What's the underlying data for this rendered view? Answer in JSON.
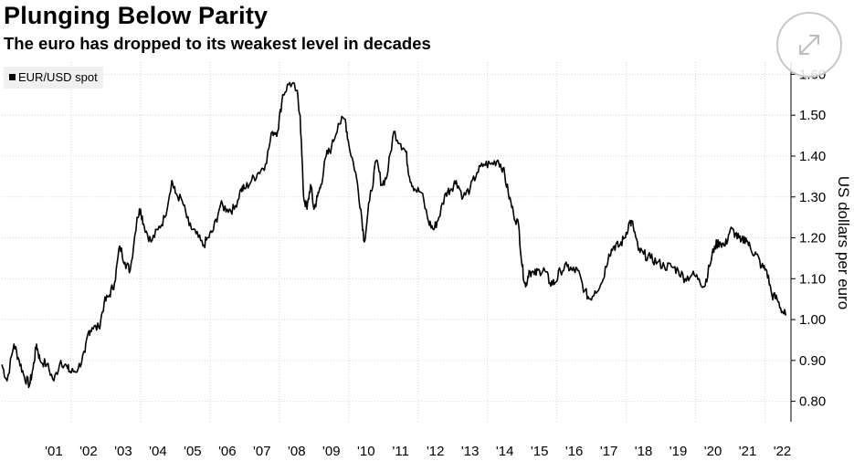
{
  "header": {
    "title": "Plunging Below Parity",
    "subtitle": "The euro has dropped to its weakest level in decades"
  },
  "legend": {
    "label": "EUR/USD spot"
  },
  "controls": {
    "expand_icon": "expand-arrows-icon"
  },
  "colors": {
    "line": "#000000",
    "grid": "#d6d6d6",
    "axis": "#000000",
    "legend_bg": "#f0f0f0"
  },
  "chart_data": {
    "type": "line",
    "title": "Plunging Below Parity",
    "subtitle": "The euro has dropped to its weakest level in decades",
    "ylabel": "US dollars per euro",
    "xlabel": "",
    "y_axis_side": "right",
    "ylim": [
      0.75,
      1.63
    ],
    "y_ticks": [
      0.8,
      0.9,
      1.0,
      1.1,
      1.2,
      1.3,
      1.4,
      1.5,
      1.6
    ],
    "y_tick_labels": [
      "0.80",
      "0.90",
      "1.00",
      "1.10",
      "1.20",
      "1.30",
      "1.40",
      "1.50",
      "1.60"
    ],
    "xlim": [
      2000.0,
      2022.75
    ],
    "x_ticks": [
      2001,
      2002,
      2003,
      2004,
      2005,
      2006,
      2007,
      2008,
      2009,
      2010,
      2011,
      2012,
      2013,
      2014,
      2015,
      2016,
      2017,
      2018,
      2019,
      2020,
      2021,
      2022
    ],
    "x_tick_labels": [
      "'01",
      "'02",
      "'03",
      "'04",
      "'05",
      "'06",
      "'07",
      "'08",
      "'09",
      "'10",
      "'11",
      "'12",
      "'13",
      "'14",
      "'15",
      "'16",
      "'17",
      "'18",
      "'19",
      "'20",
      "'21",
      "'22"
    ],
    "grid": true,
    "legend_position": "top-left",
    "series": [
      {
        "name": "EUR/USD spot",
        "x": [
          2000.0,
          2000.15,
          2000.35,
          2000.5,
          2000.65,
          2000.8,
          2000.9,
          2001.0,
          2001.1,
          2001.3,
          2001.5,
          2001.7,
          2001.9,
          2002.0,
          2002.2,
          2002.4,
          2002.5,
          2002.6,
          2002.8,
          2002.95,
          2003.1,
          2003.25,
          2003.4,
          2003.55,
          2003.7,
          2003.9,
          2004.0,
          2004.1,
          2004.3,
          2004.5,
          2004.7,
          2004.9,
          2005.0,
          2005.2,
          2005.4,
          2005.6,
          2005.8,
          2005.95,
          2006.1,
          2006.3,
          2006.5,
          2006.7,
          2006.9,
          2007.0,
          2007.2,
          2007.4,
          2007.6,
          2007.8,
          2007.95,
          2008.1,
          2008.3,
          2008.5,
          2008.6,
          2008.7,
          2008.8,
          2008.9,
          2009.0,
          2009.1,
          2009.2,
          2009.35,
          2009.5,
          2009.7,
          2009.9,
          2010.0,
          2010.2,
          2010.35,
          2010.45,
          2010.6,
          2010.8,
          2010.95,
          2011.1,
          2011.3,
          2011.5,
          2011.65,
          2011.75,
          2011.9,
          2012.1,
          2012.3,
          2012.45,
          2012.6,
          2012.8,
          2012.95,
          2013.1,
          2013.3,
          2013.5,
          2013.7,
          2013.9,
          2014.1,
          2014.3,
          2014.45,
          2014.6,
          2014.75,
          2014.9,
          2015.0,
          2015.1,
          2015.2,
          2015.35,
          2015.5,
          2015.65,
          2015.8,
          2015.95,
          2016.1,
          2016.3,
          2016.45,
          2016.6,
          2016.8,
          2016.95,
          2017.1,
          2017.3,
          2017.5,
          2017.65,
          2017.8,
          2017.95,
          2018.1,
          2018.2,
          2018.35,
          2018.5,
          2018.7,
          2018.9,
          2019.1,
          2019.3,
          2019.5,
          2019.7,
          2019.9,
          2020.1,
          2020.25,
          2020.4,
          2020.55,
          2020.7,
          2020.85,
          2021.0,
          2021.15,
          2021.3,
          2021.45,
          2021.6,
          2021.75,
          2021.9,
          2022.05,
          2022.2,
          2022.35,
          2022.5,
          2022.6
        ],
        "y": [
          0.89,
          0.85,
          0.94,
          0.9,
          0.86,
          0.84,
          0.88,
          0.94,
          0.9,
          0.89,
          0.85,
          0.9,
          0.88,
          0.87,
          0.88,
          0.92,
          0.97,
          0.98,
          0.98,
          1.04,
          1.06,
          1.09,
          1.18,
          1.14,
          1.12,
          1.25,
          1.27,
          1.23,
          1.19,
          1.22,
          1.25,
          1.34,
          1.31,
          1.29,
          1.23,
          1.21,
          1.18,
          1.2,
          1.22,
          1.28,
          1.27,
          1.27,
          1.32,
          1.32,
          1.34,
          1.36,
          1.38,
          1.46,
          1.46,
          1.55,
          1.58,
          1.56,
          1.5,
          1.3,
          1.27,
          1.33,
          1.27,
          1.3,
          1.33,
          1.4,
          1.42,
          1.48,
          1.49,
          1.43,
          1.36,
          1.27,
          1.19,
          1.29,
          1.39,
          1.33,
          1.35,
          1.46,
          1.43,
          1.41,
          1.35,
          1.32,
          1.31,
          1.24,
          1.22,
          1.25,
          1.31,
          1.32,
          1.34,
          1.3,
          1.32,
          1.36,
          1.38,
          1.38,
          1.39,
          1.37,
          1.31,
          1.26,
          1.23,
          1.13,
          1.08,
          1.12,
          1.11,
          1.12,
          1.12,
          1.09,
          1.09,
          1.12,
          1.13,
          1.12,
          1.12,
          1.07,
          1.05,
          1.07,
          1.09,
          1.16,
          1.18,
          1.18,
          1.2,
          1.24,
          1.23,
          1.17,
          1.16,
          1.15,
          1.14,
          1.13,
          1.13,
          1.12,
          1.1,
          1.11,
          1.1,
          1.08,
          1.13,
          1.18,
          1.19,
          1.18,
          1.22,
          1.21,
          1.19,
          1.2,
          1.17,
          1.16,
          1.13,
          1.12,
          1.06,
          1.05,
          1.02,
          1.01
        ]
      }
    ]
  }
}
